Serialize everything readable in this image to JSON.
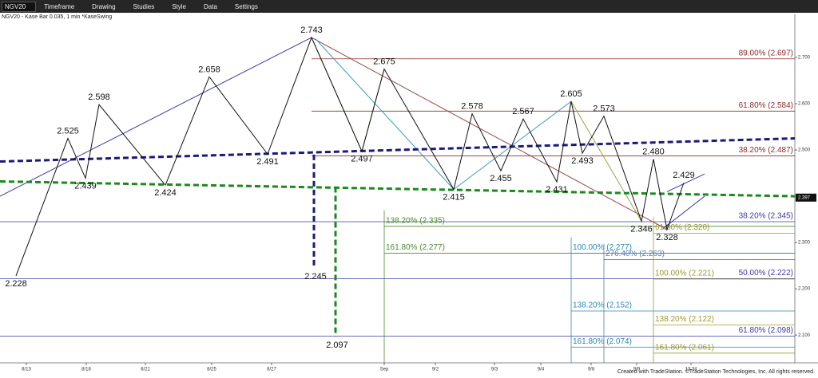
{
  "toolbar": {
    "symbol": "NGV20",
    "items": [
      "Timeframe",
      "Drawing",
      "Studies",
      "Style",
      "Data",
      "Settings"
    ]
  },
  "footer": "Created with TradeStation. ©TradeStation Technologies, Inc. All rights reserved.",
  "chart_data": {
    "type": "line",
    "title": "NGV20 - Kase Bar 0.035, 1 min  *KaseSwing",
    "xlim": [
      0,
      995
    ],
    "ylim": [
      2.04,
      2.793
    ],
    "xticks": [
      {
        "value": 33,
        "label": "8/13"
      },
      {
        "value": 108,
        "label": "8/18"
      },
      {
        "value": 182,
        "label": "8/21"
      },
      {
        "value": 265,
        "label": "8/25"
      },
      {
        "value": 340,
        "label": "8/27"
      },
      {
        "value": 481,
        "label": "Sep"
      },
      {
        "value": 545,
        "label": "9/2"
      },
      {
        "value": 619,
        "label": "9/3"
      },
      {
        "value": 677,
        "label": "9/4"
      },
      {
        "value": 740,
        "label": "9/8"
      },
      {
        "value": 797,
        "label": "9/9"
      },
      {
        "value": 865,
        "label": "13:34"
      }
    ],
    "yticks": [
      {
        "value": 2.7,
        "label": "2.700"
      },
      {
        "value": 2.6,
        "label": "2.600"
      },
      {
        "value": 2.5,
        "label": "2.500"
      },
      {
        "value": 2.4,
        "label": "2.400"
      },
      {
        "value": 2.3,
        "label": "2.300"
      },
      {
        "value": 2.2,
        "label": "2.200"
      },
      {
        "value": 2.1,
        "label": "2.100"
      }
    ],
    "last_price": 2.397,
    "series": [
      {
        "color": "#111111",
        "x": [
          20,
          85,
          107,
          124,
          207,
          262,
          335,
          390,
          453,
          481,
          568,
          591,
          627,
          655,
          697,
          715,
          729,
          756,
          803,
          818,
          835,
          856
        ],
        "values": [
          2.228,
          2.525,
          2.439,
          2.598,
          2.424,
          2.658,
          2.491,
          2.743,
          2.497,
          2.675,
          2.415,
          2.578,
          2.455,
          2.567,
          2.431,
          2.605,
          2.493,
          2.573,
          2.346,
          2.48,
          2.328,
          2.429
        ],
        "value_labels": [
          "2.228",
          "2.525",
          "2.439",
          "2.598",
          "2.424",
          "2.658",
          "2.491",
          "2.743",
          "2.497",
          "2.675",
          "2.415",
          "2.578",
          "2.455",
          "2.567",
          "2.431",
          "2.605",
          "2.493",
          "2.573",
          "2.346",
          "2.480",
          "2.328",
          "2.429"
        ]
      }
    ],
    "trendlines": [
      {
        "color": "#3a3aa8",
        "width": 1,
        "dash": false,
        "x": [
          0,
          390
        ],
        "values": [
          2.4,
          2.743
        ]
      },
      {
        "color": "#9a4545",
        "width": 1,
        "dash": false,
        "x": [
          390,
          835
        ],
        "values": [
          2.743,
          2.328
        ]
      },
      {
        "color": "#3a9ac0",
        "width": 1,
        "dash": false,
        "x": [
          395,
          568
        ],
        "values": [
          2.74,
          2.415
        ]
      },
      {
        "color": "#3a9ac0",
        "width": 1,
        "dash": false,
        "x": [
          568,
          715
        ],
        "values": [
          2.415,
          2.605
        ]
      },
      {
        "color": "#6a9a3a",
        "width": 1,
        "dash": false,
        "x": [
          390,
          453
        ],
        "values": [
          2.743,
          2.497
        ]
      },
      {
        "color": "#6a9a3a",
        "width": 1,
        "dash": false,
        "x": [
          453,
          481
        ],
        "values": [
          2.497,
          2.675
        ]
      },
      {
        "color": "#a0a040",
        "width": 1,
        "dash": false,
        "x": [
          715,
          803
        ],
        "values": [
          2.605,
          2.346
        ]
      },
      {
        "color": "#3a3aa8",
        "width": 1,
        "dash": false,
        "x": [
          830,
          882
        ],
        "values": [
          2.33,
          2.4
        ]
      },
      {
        "color": "#3a3aa8",
        "width": 1,
        "dash": false,
        "x": [
          835,
          882
        ],
        "values": [
          2.41,
          2.448
        ]
      },
      {
        "color": "#1a1a7a",
        "width": 3,
        "dash": true,
        "x": [
          0,
          995
        ],
        "values": [
          2.475,
          2.525
        ]
      },
      {
        "color": "#1a8a1a",
        "width": 3,
        "dash": true,
        "x": [
          0,
          995
        ],
        "values": [
          2.432,
          2.4
        ]
      }
    ],
    "projections": [
      {
        "color": "#1a1a7a",
        "x": 393,
        "from": 2.49,
        "to": 2.245
      },
      {
        "color": "#1a8a1a",
        "x": 420,
        "from": 2.42,
        "to": 2.097
      }
    ],
    "fib_groups": [
      {
        "color": "#8b2a2a",
        "x": 390,
        "vertical": false,
        "levels": [
          {
            "value": 2.697,
            "label": "89.00% (2.697)"
          },
          {
            "value": 2.584,
            "label": "61.80% (2.584)"
          },
          {
            "value": 2.487,
            "label": "38.20% (2.487)"
          }
        ]
      },
      {
        "color": "#3a3aa8",
        "x": 0,
        "vertical": false,
        "levels": [
          {
            "value": 2.345,
            "label": "38.20% (2.345)"
          },
          {
            "value": 2.222,
            "label": "50.00% (2.222)"
          },
          {
            "value": 2.098,
            "label": "61.80% (2.098)"
          }
        ]
      },
      {
        "color": "#4a8a2a",
        "x": 481,
        "vertical": true,
        "levels": [
          {
            "value": 2.335,
            "label": "138.20% (2.335)"
          },
          {
            "value": 2.277,
            "label": "161.80% (2.277)"
          }
        ]
      },
      {
        "color": "#2a8ab0",
        "x": 715,
        "vertical": true,
        "levels": [
          {
            "value": 2.277,
            "label": "100.00% (2.277)"
          },
          {
            "value": 2.152,
            "label": "138.20% (2.152)"
          },
          {
            "value": 2.074,
            "label": "161.80% (2.074)"
          }
        ]
      },
      {
        "color": "#5a7ab0",
        "x": 756,
        "vertical": true,
        "levels": [
          {
            "value": 2.263,
            "label": "276.40% (2.263)"
          }
        ]
      },
      {
        "color": "#9a9a30",
        "x": 818,
        "vertical": true,
        "levels": [
          {
            "value": 2.32,
            "label": "61.80% (2.320)"
          },
          {
            "value": 2.221,
            "label": "100.00% (2.221)"
          },
          {
            "value": 2.122,
            "label": "138.20% (2.122)"
          },
          {
            "value": 2.061,
            "label": "161.80% (2.061)"
          }
        ]
      }
    ]
  }
}
